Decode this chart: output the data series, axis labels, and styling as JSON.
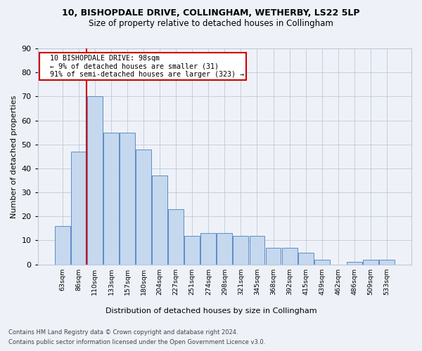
{
  "title": "10, BISHOPDALE DRIVE, COLLINGHAM, WETHERBY, LS22 5LP",
  "subtitle": "Size of property relative to detached houses in Collingham",
  "xlabel": "Distribution of detached houses by size in Collingham",
  "ylabel": "Number of detached properties",
  "bar_values": [
    16,
    47,
    70,
    55,
    55,
    48,
    37,
    23,
    12,
    13,
    13,
    12,
    12,
    7,
    7,
    5,
    2,
    0,
    1,
    2,
    2
  ],
  "bin_labels": [
    "63sqm",
    "86sqm",
    "110sqm",
    "133sqm",
    "157sqm",
    "180sqm",
    "204sqm",
    "227sqm",
    "251sqm",
    "274sqm",
    "298sqm",
    "321sqm",
    "345sqm",
    "368sqm",
    "392sqm",
    "415sqm",
    "439sqm",
    "462sqm",
    "486sqm",
    "509sqm",
    "533sqm"
  ],
  "bar_color": "#c5d8ee",
  "bar_edge_color": "#5b8dc8",
  "annotation_title": "10 BISHOPDALE DRIVE: 98sqm",
  "annotation_line1": "← 9% of detached houses are smaller (31)",
  "annotation_line2": "91% of semi-detached houses are larger (323) →",
  "annotation_box_edge": "#cc0000",
  "vline_color": "#cc0000",
  "ylim_max": 90,
  "yticks": [
    0,
    10,
    20,
    30,
    40,
    50,
    60,
    70,
    80,
    90
  ],
  "footer1": "Contains HM Land Registry data © Crown copyright and database right 2024.",
  "footer2": "Contains public sector information licensed under the Open Government Licence v3.0.",
  "bg_color": "#eef2f8",
  "grid_color": "#c0c8d8"
}
